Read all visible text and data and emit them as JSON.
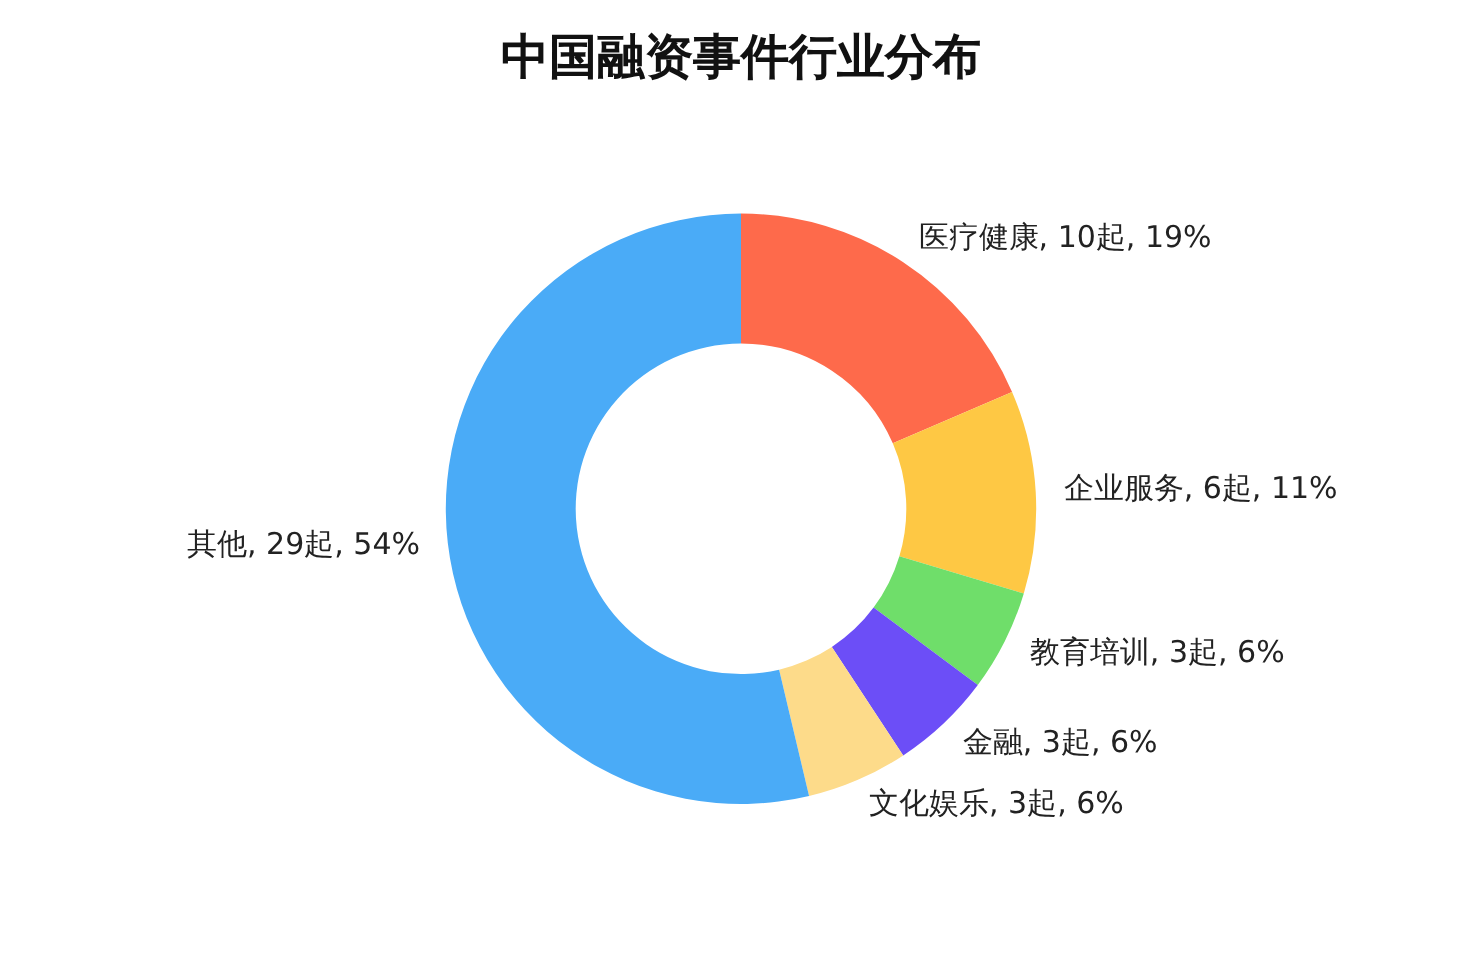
{
  "chart_data": {
    "type": "donut",
    "title": "中国融资事件行业分布",
    "categories": [
      "医疗健康",
      "企业服务",
      "教育培训",
      "金融",
      "文化娱乐",
      "其他"
    ],
    "values": [
      10,
      6,
      3,
      3,
      3,
      29
    ],
    "value_labels": [
      "10起, 19%",
      "6起, 11%",
      "3起, 6%",
      "3起, 6%",
      "3起, 6%",
      "29起, 54%"
    ],
    "colors": [
      "#fe6a4b",
      "#fec844",
      "#6fde6a",
      "#6c4ef7",
      "#fddb8a",
      "#4aabf7"
    ],
    "legend": false
  }
}
